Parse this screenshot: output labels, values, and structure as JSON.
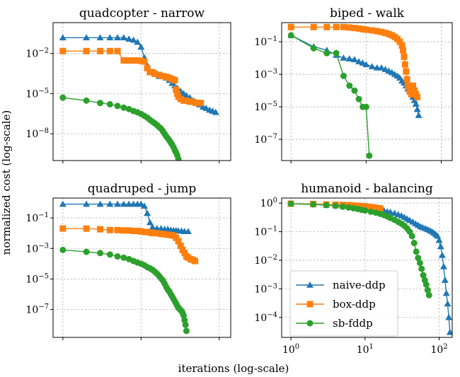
{
  "figure": {
    "xlabel": "iterations (log-scale)",
    "ylabel": "normalized cost (log-scale)"
  },
  "colors": {
    "naive-ddp": "#1f77b4",
    "box-ddp": "#ff7f0e",
    "sb-fddp": "#2ca02c",
    "grid": "#b0b0b0"
  },
  "chart_data": [
    {
      "type": "line",
      "title": "quadcopter - narrow",
      "xscale": "log",
      "yscale": "log",
      "xlim": [
        0.75,
        140
      ],
      "ylim": [
        1e-10,
        2
      ],
      "yticks": [
        1e-08,
        1e-05,
        0.01
      ],
      "yticklabels": [
        "10^-8",
        "10^-5",
        "10^-2"
      ],
      "xticks": [
        1,
        10,
        100
      ],
      "xticklabels": [],
      "grid": true,
      "series": [
        {
          "name": "naive-ddp",
          "x": [
            1,
            2,
            3,
            4,
            5,
            6,
            7,
            8,
            9,
            10,
            11,
            12,
            13,
            14,
            15,
            17,
            19,
            21,
            23,
            25,
            27,
            29,
            32,
            35,
            38,
            42,
            46,
            51,
            56,
            62,
            68,
            75,
            82,
            90
          ],
          "y": [
            0.15,
            0.15,
            0.15,
            0.15,
            0.15,
            0.15,
            0.12,
            0.1,
            0.07,
            0.03,
            0.005,
            0.0013,
            0.0005,
            0.0004,
            0.0003,
            0.0002,
            0.0002,
            0.00015,
            0.0001,
            6e-05,
            4e-05,
            2.5e-05,
            1.5e-05,
            1e-05,
            7e-06,
            5e-06,
            3e-06,
            2e-06,
            1.5e-06,
            1e-06,
            8e-07,
            6e-07,
            5e-07,
            4e-07
          ]
        },
        {
          "name": "box-ddp",
          "x": [
            1,
            2,
            3,
            4,
            5,
            6,
            7,
            8,
            9,
            10,
            11,
            12,
            13,
            14,
            15,
            17,
            19,
            21,
            23,
            25,
            27,
            28,
            29,
            30,
            32,
            35,
            38,
            42,
            46,
            50,
            54,
            58
          ],
          "y": [
            0.015,
            0.015,
            0.015,
            0.015,
            0.015,
            0.003,
            0.003,
            0.003,
            0.003,
            0.0028,
            0.0025,
            0.0008,
            0.0004,
            0.0004,
            0.0003,
            0.00025,
            0.0002,
            0.00018,
            0.00015,
            0.00012,
            0.0001,
            2e-05,
            1e-05,
            6e-06,
            4e-06,
            3e-06,
            3e-06,
            2.5e-06,
            2.5e-06,
            2e-06,
            2e-06,
            2e-06
          ]
        },
        {
          "name": "sb-fddp",
          "x": [
            1,
            2,
            3,
            4,
            5,
            6,
            7,
            8,
            9,
            10,
            11,
            12,
            13,
            14,
            15,
            16,
            17,
            18,
            19,
            20,
            21,
            22,
            23,
            24,
            25,
            26,
            27,
            28,
            29,
            30
          ],
          "y": [
            5e-06,
            3e-06,
            2e-06,
            1.6e-06,
            1.2e-06,
            9e-07,
            7e-07,
            5e-07,
            4e-07,
            3e-07,
            2.2e-07,
            1.6e-07,
            1.1e-07,
            8e-08,
            6e-08,
            4.5e-08,
            3.2e-08,
            2.4e-08,
            1.6e-08,
            1e-08,
            6.5e-09,
            4.5e-09,
            3.2e-09,
            2.2e-09,
            1.5e-09,
            1e-09,
            6e-10,
            4e-10,
            2.5e-10,
            1.3e-10
          ]
        }
      ]
    },
    {
      "type": "line",
      "title": "biped - walk",
      "xscale": "log",
      "yscale": "log",
      "xlim": [
        0.75,
        140
      ],
      "ylim": [
        5e-09,
        1.5
      ],
      "yticks": [
        1e-07,
        1e-05,
        0.001,
        0.1
      ],
      "yticklabels": [
        "10^-7",
        "10^-5",
        "10^-3",
        "10^-1"
      ],
      "xticks": [
        1,
        10,
        100
      ],
      "xticklabels": [],
      "grid": true,
      "series": [
        {
          "name": "naive-ddp",
          "x": [
            1,
            2,
            3,
            4,
            5,
            6,
            7,
            8,
            9,
            10,
            12,
            14,
            16,
            18,
            20,
            22,
            24,
            26,
            28,
            30,
            32,
            34,
            36,
            38,
            40,
            42,
            44,
            46,
            48,
            50
          ],
          "y": [
            0.25,
            0.05,
            0.03,
            0.015,
            0.01,
            0.009,
            0.008,
            0.006,
            0.005,
            0.004,
            0.003,
            0.0025,
            0.0025,
            0.002,
            0.0016,
            0.0013,
            0.001,
            0.0008,
            0.0006,
            0.0004,
            0.0003,
            0.0002,
            0.00013,
            9e-05,
            6e-05,
            4e-05,
            2.5e-05,
            1.5e-05,
            7e-06,
            3e-06
          ]
        },
        {
          "name": "box-ddp",
          "x": [
            1,
            2,
            3,
            4,
            5,
            6,
            7,
            8,
            9,
            10,
            12,
            14,
            16,
            18,
            20,
            22,
            24,
            26,
            28,
            30,
            31,
            32,
            33,
            34,
            35,
            36,
            38,
            40,
            42,
            44,
            46,
            48
          ],
          "y": [
            0.8,
            0.8,
            0.8,
            0.8,
            0.8,
            0.75,
            0.7,
            0.65,
            0.6,
            0.55,
            0.5,
            0.45,
            0.4,
            0.35,
            0.3,
            0.25,
            0.2,
            0.15,
            0.1,
            0.06,
            0.03,
            0.012,
            0.004,
            0.0015,
            0.0005,
            0.0002,
            9e-05,
            6e-05,
            0.0002,
            0.0001,
            6e-05,
            4e-05
          ]
        },
        {
          "name": "sb-fddp",
          "x": [
            1,
            2,
            3,
            4,
            5,
            6,
            7,
            8,
            9,
            10,
            11
          ],
          "y": [
            0.25,
            0.04,
            0.02,
            0.02,
            0.0008,
            0.0002,
            0.0001,
            3e-05,
            1e-05,
            1e-05,
            1e-08
          ]
        }
      ]
    },
    {
      "type": "line",
      "title": "quadruped - jump",
      "xscale": "log",
      "yscale": "log",
      "xlim": [
        0.75,
        140
      ],
      "ylim": [
        1.5e-09,
        2
      ],
      "yticks": [
        1e-07,
        1e-05,
        0.001,
        0.1
      ],
      "yticklabels": [
        "10^-7",
        "10^-5",
        "10^-3",
        "10^-1"
      ],
      "xticks": [
        1,
        10,
        100
      ],
      "xticklabels": [],
      "grid": true,
      "series": [
        {
          "name": "naive-ddp",
          "x": [
            1,
            2,
            3,
            4,
            5,
            6,
            7,
            8,
            9,
            10,
            11,
            12,
            13,
            14,
            16,
            18,
            20,
            22,
            24,
            26,
            28,
            30,
            33,
            36,
            40
          ],
          "y": [
            0.8,
            0.8,
            0.8,
            0.8,
            0.8,
            0.8,
            0.8,
            0.8,
            0.8,
            0.8,
            0.6,
            0.2,
            0.05,
            0.025,
            0.02,
            0.02,
            0.018,
            0.018,
            0.016,
            0.015,
            0.015,
            0.014,
            0.014,
            0.013,
            0.013
          ]
        },
        {
          "name": "box-ddp",
          "x": [
            1,
            2,
            3,
            4,
            5,
            6,
            7,
            8,
            9,
            10,
            11,
            12,
            13,
            14,
            16,
            18,
            20,
            22,
            24,
            26,
            28,
            30,
            32,
            34,
            36,
            38,
            40,
            43,
            46,
            49
          ],
          "y": [
            0.02,
            0.02,
            0.018,
            0.016,
            0.016,
            0.015,
            0.015,
            0.014,
            0.014,
            0.013,
            0.012,
            0.012,
            0.011,
            0.01,
            0.01,
            0.009,
            0.0085,
            0.008,
            0.0075,
            0.007,
            0.005,
            0.003,
            0.0015,
            0.0008,
            0.0005,
            0.0003,
            0.00025,
            0.0002,
            0.00018,
            0.00015
          ]
        },
        {
          "name": "sb-fddp",
          "x": [
            1,
            2,
            3,
            4,
            5,
            6,
            7,
            8,
            9,
            10,
            11,
            12,
            13,
            14,
            15,
            16,
            17,
            18,
            19,
            20,
            21,
            22,
            23,
            24,
            25,
            26,
            27,
            28,
            29,
            30,
            31,
            32,
            33,
            34,
            35,
            36,
            37,
            38
          ],
          "y": [
            0.0008,
            0.0006,
            0.0005,
            0.0004,
            0.0003,
            0.00025,
            0.0002,
            0.00015,
            0.00012,
            0.0001,
            8e-05,
            6e-05,
            5e-05,
            4e-05,
            3e-05,
            2.2e-05,
            1.6e-05,
            1.1e-05,
            8e-06,
            5e-06,
            3e-06,
            2e-06,
            1.5e-06,
            1e-06,
            7e-07,
            5e-07,
            3.5e-07,
            2.5e-07,
            1.8e-07,
            1.3e-07,
            1.1e-07,
            9e-08,
            8e-08,
            6e-08,
            4e-08,
            2e-08,
            1e-08,
            4e-09
          ]
        }
      ]
    },
    {
      "type": "line",
      "title": "humanoid - balancing",
      "xscale": "log",
      "yscale": "log",
      "xlim": [
        0.75,
        150
      ],
      "ylim": [
        2e-05,
        1.5
      ],
      "yticks": [
        0.0001,
        0.001,
        0.01,
        0.1,
        1
      ],
      "yticklabels": [
        "10^-4",
        "10^-3",
        "10^-2",
        "10^-1",
        "10^0"
      ],
      "xticks": [
        1,
        10,
        100
      ],
      "xticklabels": [
        "10^0",
        "10^1",
        "10^2"
      ],
      "grid": true,
      "legend": "lower-left",
      "series": [
        {
          "name": "naive-ddp",
          "x": [
            1,
            2,
            3,
            4,
            5,
            6,
            7,
            8,
            9,
            10,
            12,
            14,
            16,
            18,
            20,
            22,
            25,
            28,
            31,
            34,
            37,
            40,
            44,
            48,
            52,
            56,
            60,
            65,
            70,
            75,
            80,
            85,
            90,
            95,
            100,
            105,
            110,
            115,
            120,
            125,
            130,
            135,
            140
          ],
          "y": [
            0.95,
            0.9,
            0.85,
            0.82,
            0.8,
            0.78,
            0.75,
            0.72,
            0.7,
            0.68,
            0.65,
            0.62,
            0.58,
            0.55,
            0.5,
            0.48,
            0.44,
            0.4,
            0.36,
            0.32,
            0.28,
            0.25,
            0.22,
            0.19,
            0.17,
            0.15,
            0.14,
            0.13,
            0.12,
            0.11,
            0.1,
            0.09,
            0.08,
            0.07,
            0.05,
            0.03,
            0.015,
            0.006,
            0.002,
            0.0007,
            0.0003,
            0.0001,
            3e-05
          ]
        },
        {
          "name": "box-ddp",
          "x": [
            1,
            2,
            3,
            4,
            5,
            6,
            7,
            8,
            9,
            10,
            11,
            12,
            13,
            14,
            15,
            16
          ],
          "y": [
            0.95,
            0.93,
            0.9,
            0.88,
            0.86,
            0.84,
            0.82,
            0.8,
            0.78,
            0.76,
            0.74,
            0.72,
            0.7,
            0.68,
            0.66,
            0.64
          ]
        },
        {
          "name": "sb-fddp",
          "x": [
            1,
            2,
            3,
            4,
            5,
            6,
            7,
            8,
            9,
            10,
            12,
            14,
            16,
            18,
            20,
            22,
            25,
            28,
            31,
            34,
            37,
            40,
            43,
            46,
            49,
            52,
            55,
            58,
            61,
            64,
            67,
            70,
            73
          ],
          "y": [
            0.95,
            0.9,
            0.85,
            0.8,
            0.75,
            0.7,
            0.66,
            0.62,
            0.58,
            0.55,
            0.5,
            0.46,
            0.42,
            0.38,
            0.34,
            0.3,
            0.26,
            0.22,
            0.19,
            0.16,
            0.13,
            0.1,
            0.07,
            0.04,
            0.02,
            0.012,
            0.008,
            0.005,
            0.003,
            0.002,
            0.0014,
            0.0009,
            0.0006
          ]
        }
      ]
    }
  ]
}
